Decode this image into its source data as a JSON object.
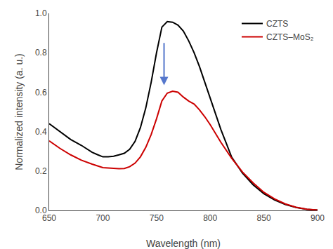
{
  "chart_data": {
    "type": "line",
    "xlabel": "Wavelength (nm)",
    "ylabel": "Normalized intensity (a. u.)",
    "xlim": [
      650,
      900
    ],
    "ylim": [
      0.0,
      1.0
    ],
    "xticks": [
      650,
      700,
      750,
      800,
      850,
      900
    ],
    "yticks": [
      {
        "value": 0.0,
        "label": "0.0"
      },
      0.2,
      0.4,
      0.6,
      0.8,
      {
        "value": 1.0,
        "label": "1.0"
      }
    ],
    "grid": false,
    "legend": "upper right",
    "series": [
      {
        "name": "CZTS",
        "color": "#000000",
        "x": [
          650,
          660,
          670,
          680,
          690,
          695,
          700,
          705,
          710,
          715,
          720,
          725,
          730,
          735,
          740,
          745,
          750,
          755,
          760,
          765,
          770,
          775,
          780,
          785,
          790,
          795,
          800,
          805,
          810,
          815,
          820,
          830,
          840,
          850,
          860,
          870,
          880,
          890,
          900
        ],
        "values": [
          0.44,
          0.4,
          0.36,
          0.33,
          0.295,
          0.283,
          0.272,
          0.272,
          0.275,
          0.282,
          0.29,
          0.31,
          0.35,
          0.42,
          0.52,
          0.65,
          0.8,
          0.93,
          0.958,
          0.955,
          0.94,
          0.91,
          0.86,
          0.8,
          0.73,
          0.65,
          0.57,
          0.49,
          0.41,
          0.34,
          0.27,
          0.19,
          0.13,
          0.085,
          0.053,
          0.03,
          0.015,
          0.005,
          0.002
        ]
      },
      {
        "name": "CZTS–MoS₂",
        "color": "#cc0000",
        "x": [
          650,
          660,
          670,
          680,
          690,
          695,
          700,
          705,
          710,
          715,
          720,
          725,
          730,
          735,
          740,
          745,
          750,
          755,
          760,
          765,
          770,
          775,
          780,
          785,
          790,
          795,
          800,
          805,
          810,
          820,
          830,
          840,
          850,
          860,
          870,
          880,
          890,
          900
        ],
        "values": [
          0.353,
          0.315,
          0.282,
          0.255,
          0.235,
          0.225,
          0.217,
          0.215,
          0.213,
          0.212,
          0.213,
          0.222,
          0.24,
          0.272,
          0.32,
          0.385,
          0.465,
          0.555,
          0.595,
          0.605,
          0.6,
          0.575,
          0.555,
          0.54,
          0.51,
          0.475,
          0.435,
          0.39,
          0.345,
          0.265,
          0.195,
          0.14,
          0.092,
          0.058,
          0.033,
          0.016,
          0.006,
          0.002
        ]
      }
    ],
    "arrows": [
      {
        "x": 757,
        "y_start": 0.855,
        "y_end": 0.635,
        "color": "#5577cc"
      }
    ]
  }
}
